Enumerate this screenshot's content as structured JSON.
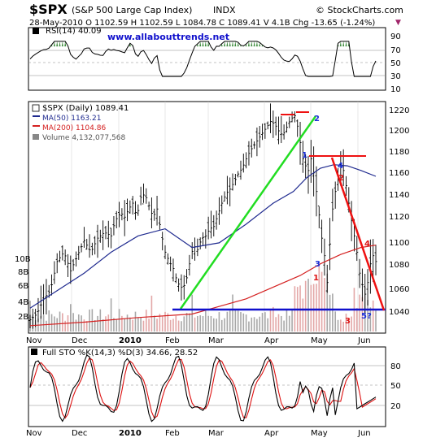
{
  "header": {
    "symbol": "$SPX",
    "name": "(S&P 500 Large Cap Index)",
    "exchange": "INDX",
    "brand": "© StockCharts.com",
    "quote": "28-May-2010  O 1102.59  H 1102.59  L 1084.78  C 1089.41  V 4.1B  Chg -13.65 (-1.24%)",
    "chg_marker": "▼"
  },
  "rsi_panel": {
    "label": "RSI(14) 40.09",
    "watermark": "www.allabouttrends.net",
    "ticks": [
      "90",
      "70",
      "50",
      "30",
      "10"
    ]
  },
  "price_panel": {
    "legend_price": "$SPX (Daily) 1089.41",
    "legend_ma50": "MA(50) 1163.21",
    "legend_ma200": "MA(200) 1104.86",
    "legend_volume": "Volume 4,132,077,568",
    "price_ticks": [
      "1220",
      "1200",
      "1180",
      "1160",
      "1140",
      "1120",
      "1100",
      "1080",
      "1060",
      "1040"
    ],
    "volume_ticks": [
      "10B",
      "8B",
      "6B",
      "4B",
      "2B"
    ],
    "annotations": {
      "wave_1_upper": "1",
      "wave_2_upper": "2",
      "wave_3_upper": "3",
      "wave_4_upper": "4",
      "wave_1_lower": "1",
      "wave_2_lower": "2",
      "wave_3_lower": "3",
      "wave_4_lower": "4",
      "wave_5": "5?"
    }
  },
  "sto_panel": {
    "label": "Full STO %K(14,3) %D(3) 34.66, 28.52",
    "ticks": [
      "80",
      "50",
      "20"
    ]
  },
  "x_axis_labels": [
    "Nov",
    "Dec",
    "2010",
    "Feb",
    "Mar",
    "Apr",
    "May",
    "Jun"
  ],
  "colors": {
    "price_bar": "#000000",
    "ma50": "#1f2a8f",
    "ma200": "#d42020",
    "volume": "#a8a8a8",
    "volume_down": "#e3a7a7",
    "trend_green": "#22dd22",
    "trend_red": "#ee1111",
    "support_blue": "#1010cc",
    "label_blue": "#1a2fd8",
    "label_red": "#dd1111",
    "watermark": "#1010cc"
  },
  "chart_data": {
    "type": "ohlc",
    "title": "$SPX (S&P 500 Large Cap Index)",
    "series": [
      {
        "name": "MA(50)",
        "last": 1163.21
      },
      {
        "name": "MA(200)",
        "last": 1104.86
      },
      {
        "name": "Volume",
        "last": 4132077568
      }
    ],
    "yrange_price": [
      1030,
      1225
    ],
    "rsi_range": [
      0,
      100
    ],
    "sto_range": [
      0,
      100
    ],
    "close_path": [
      [
        0,
        1040
      ],
      [
        5,
        1045
      ],
      [
        10,
        1058
      ],
      [
        15,
        1065
      ],
      [
        20,
        1090
      ],
      [
        25,
        1098
      ],
      [
        30,
        1082
      ],
      [
        35,
        1095
      ],
      [
        40,
        1108
      ],
      [
        45,
        1098
      ],
      [
        50,
        1110
      ],
      [
        55,
        1115
      ],
      [
        60,
        1112
      ],
      [
        63,
        1125
      ],
      [
        67,
        1132
      ],
      [
        70,
        1128
      ],
      [
        73,
        1135
      ],
      [
        76,
        1140
      ],
      [
        79,
        1128
      ],
      [
        82,
        1145
      ],
      [
        85,
        1148
      ],
      [
        88,
        1138
      ],
      [
        91,
        1128
      ],
      [
        94,
        1135
      ],
      [
        97,
        1115
      ],
      [
        100,
        1098
      ],
      [
        103,
        1090
      ],
      [
        106,
        1084
      ],
      [
        109,
        1072
      ],
      [
        112,
        1068
      ],
      [
        115,
        1070
      ],
      [
        118,
        1088
      ],
      [
        121,
        1104
      ],
      [
        124,
        1100
      ],
      [
        127,
        1110
      ],
      [
        130,
        1112
      ],
      [
        133,
        1118
      ],
      [
        136,
        1120
      ],
      [
        139,
        1130
      ],
      [
        142,
        1140
      ],
      [
        145,
        1148
      ],
      [
        148,
        1152
      ],
      [
        151,
        1158
      ],
      [
        154,
        1165
      ],
      [
        157,
        1170
      ],
      [
        160,
        1178
      ],
      [
        163,
        1185
      ],
      [
        166,
        1190
      ],
      [
        169,
        1195
      ],
      [
        172,
        1200
      ],
      [
        175,
        1205
      ],
      [
        178,
        1210
      ],
      [
        181,
        1208
      ],
      [
        184,
        1202
      ],
      [
        187,
        1198
      ],
      [
        190,
        1205
      ],
      [
        193,
        1212
      ],
      [
        196,
        1215
      ],
      [
        198,
        1206
      ],
      [
        200,
        1192
      ],
      [
        202,
        1178
      ],
      [
        204,
        1172
      ],
      [
        206,
        1168
      ],
      [
        208,
        1178
      ],
      [
        210,
        1166
      ],
      [
        212,
        1150
      ],
      [
        214,
        1130
      ],
      [
        216,
        1110
      ],
      [
        218,
        1095
      ],
      [
        220,
        1072
      ],
      [
        222,
        1105
      ],
      [
        224,
        1135
      ],
      [
        226,
        1150
      ],
      [
        228,
        1162
      ],
      [
        230,
        1172
      ],
      [
        232,
        1168
      ],
      [
        234,
        1155
      ],
      [
        236,
        1140
      ],
      [
        238,
        1125
      ],
      [
        240,
        1112
      ],
      [
        242,
        1098
      ],
      [
        244,
        1080
      ],
      [
        246,
        1070
      ],
      [
        248,
        1062
      ],
      [
        250,
        1072
      ],
      [
        252,
        1088
      ],
      [
        254,
        1095
      ],
      [
        256,
        1090
      ]
    ],
    "ma50_path": [
      [
        0,
        1050
      ],
      [
        20,
        1065
      ],
      [
        40,
        1080
      ],
      [
        60,
        1098
      ],
      [
        80,
        1112
      ],
      [
        100,
        1118
      ],
      [
        120,
        1102
      ],
      [
        140,
        1106
      ],
      [
        160,
        1122
      ],
      [
        180,
        1140
      ],
      [
        195,
        1150
      ],
      [
        205,
        1162
      ],
      [
        215,
        1170
      ],
      [
        225,
        1173
      ],
      [
        235,
        1172
      ],
      [
        245,
        1168
      ],
      [
        256,
        1163
      ]
    ],
    "ma200_path": [
      [
        0,
        1035
      ],
      [
        40,
        1038
      ],
      [
        80,
        1042
      ],
      [
        120,
        1045
      ],
      [
        160,
        1058
      ],
      [
        180,
        1068
      ],
      [
        200,
        1078
      ],
      [
        215,
        1088
      ],
      [
        230,
        1096
      ],
      [
        245,
        1102
      ],
      [
        256,
        1104
      ]
    ],
    "annotations": [
      {
        "text": "1",
        "x": 200,
        "price": 1180,
        "color": "blue"
      },
      {
        "text": "2",
        "x": 208,
        "price": 1200,
        "color": "blue"
      },
      {
        "text": "4",
        "x": 228,
        "price": 1170,
        "color": "blue"
      },
      {
        "text": "3",
        "x": 215,
        "price": 1080,
        "color": "blue"
      },
      {
        "text": "1",
        "x": 213,
        "price": 1062,
        "color": "red"
      },
      {
        "text": "2",
        "x": 232,
        "price": 1152,
        "color": "red"
      },
      {
        "text": "4",
        "x": 250,
        "price": 1100,
        "color": "red"
      }
    ]
  }
}
